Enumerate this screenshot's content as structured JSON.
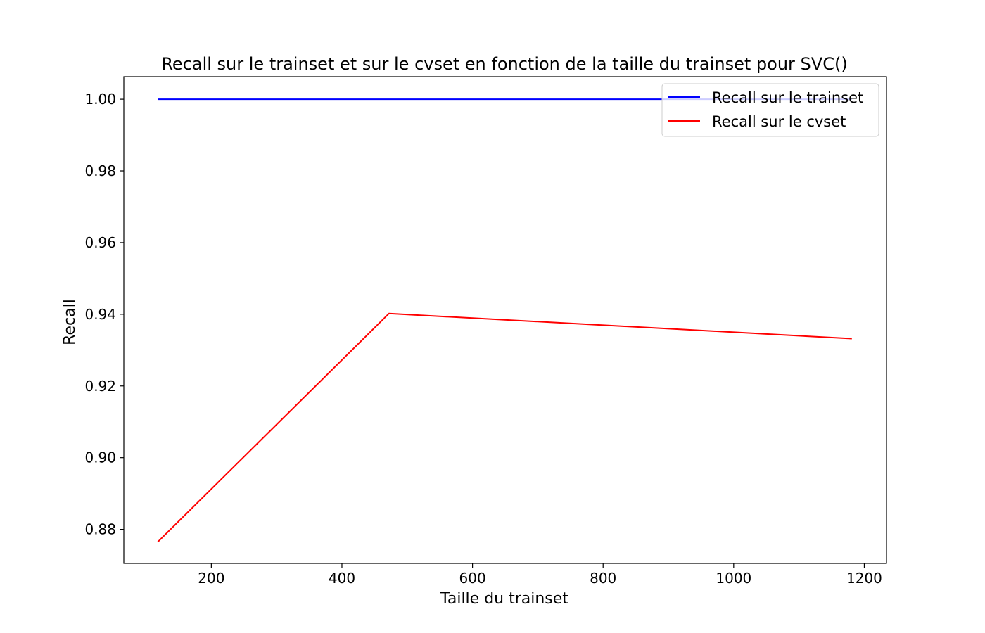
{
  "chart_data": {
    "type": "line",
    "title": "Recall sur le trainset et sur le cvset en fonction de la taille du trainset pour SVC()",
    "xlabel": "Taille du trainset",
    "ylabel": "Recall",
    "xlim": [
      66,
      1234
    ],
    "ylim": [
      0.8705,
      1.0063
    ],
    "xticks": [
      200,
      400,
      600,
      800,
      1000,
      1200
    ],
    "xtick_labels": [
      "200",
      "400",
      "600",
      "800",
      "1000",
      "1200"
    ],
    "yticks": [
      0.88,
      0.9,
      0.92,
      0.94,
      0.96,
      0.98,
      1.0
    ],
    "ytick_labels": [
      "0.88",
      "0.90",
      "0.92",
      "0.94",
      "0.96",
      "0.98",
      "1.00"
    ],
    "grid": false,
    "legend_position": "top-right",
    "x": [
      118,
      472,
      1181
    ],
    "series": [
      {
        "name": "Recall sur le trainset",
        "color": "#0000ff",
        "values": [
          1.0,
          1.0,
          1.0
        ]
      },
      {
        "name": "Recall sur le cvset",
        "color": "#ff0000",
        "values": [
          0.8765,
          0.9402,
          0.9332
        ]
      }
    ]
  }
}
